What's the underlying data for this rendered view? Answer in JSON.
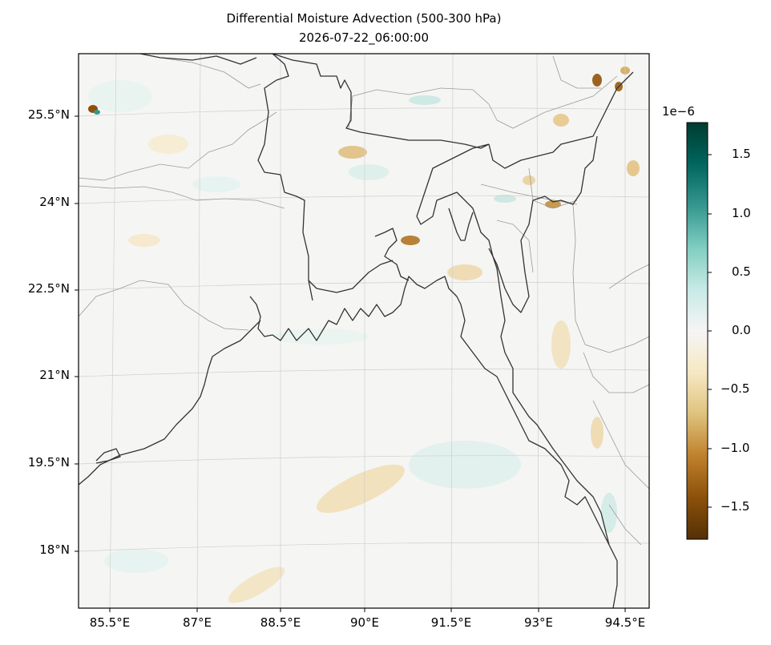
{
  "title": "Differential Moisture Advection (500-300 hPa)",
  "subtitle": "2026-07-22_06:00:00",
  "map": {
    "lat_labels": [
      "25.5°N",
      "24°N",
      "22.5°N",
      "21°N",
      "19.5°N",
      "18°N"
    ],
    "lon_labels": [
      "85.5°E",
      "87°E",
      "88.5°E",
      "90°E",
      "91.5°E",
      "93°E",
      "94.5°E"
    ],
    "gridlines": true,
    "features": [
      "coastline",
      "country-borders",
      "state-borders"
    ]
  },
  "colorbar": {
    "colormap": "BrBG",
    "offset_label": "1e−6",
    "tick_labels": [
      "1.5",
      "1.0",
      "0.5",
      "0.0",
      "−0.5",
      "−1.0",
      "−1.5"
    ],
    "ticks": [
      1.5,
      1.0,
      0.5,
      0.0,
      -0.5,
      -1.0,
      -1.5
    ],
    "range": [
      -1.75,
      1.75
    ],
    "colors": [
      "#543005",
      "#8c510a",
      "#bf812d",
      "#dfc27d",
      "#f6e8c3",
      "#f5f5f5",
      "#c7eae5",
      "#80cdc1",
      "#35978f",
      "#01665e",
      "#003c30"
    ]
  }
}
